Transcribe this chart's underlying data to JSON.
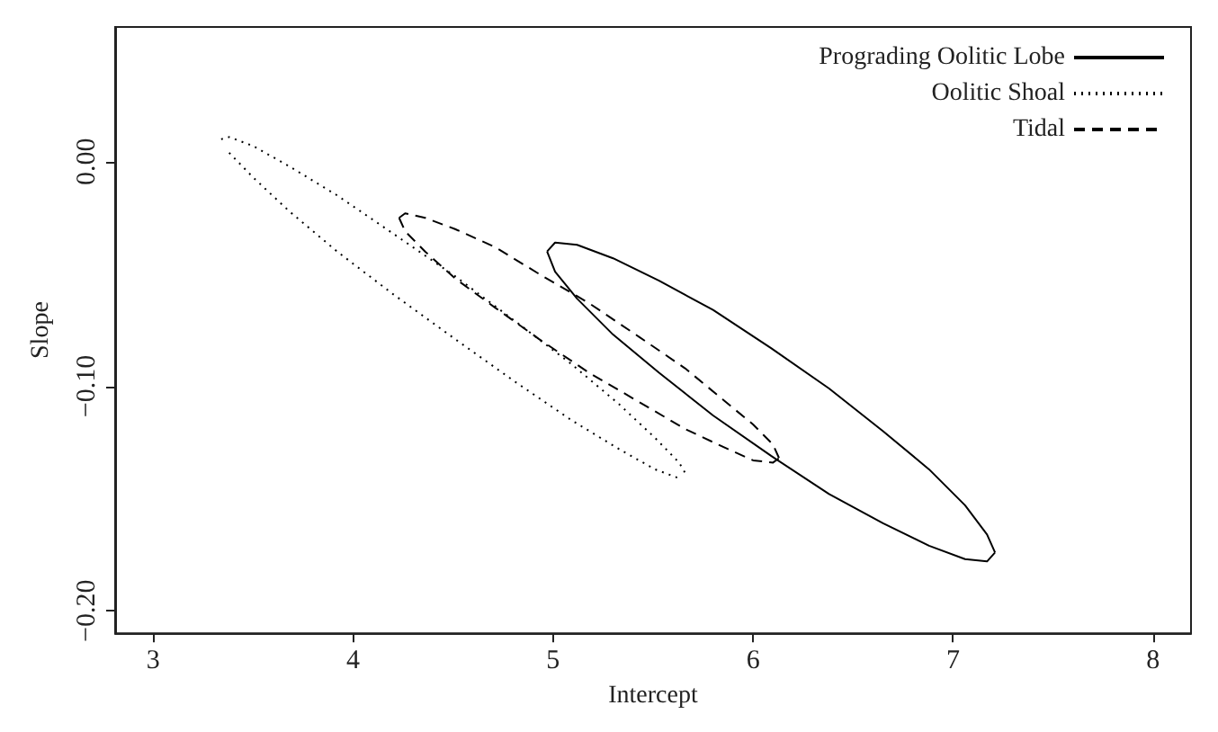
{
  "chart_data": {
    "type": "line",
    "xlabel": "Intercept",
    "ylabel": "Slope",
    "xlim": [
      2.81,
      8.19
    ],
    "ylim": [
      -0.21,
      0.06
    ],
    "xticks": [
      3,
      4,
      5,
      6,
      7,
      8
    ],
    "yticks": [
      {
        "value": 0,
        "label": "0.00"
      },
      {
        "value": -0.1,
        "label": "−0.10"
      },
      {
        "value": -0.2,
        "label": "−0.20"
      }
    ],
    "grid": false,
    "legend": "top right",
    "marker": "none",
    "series": [
      {
        "name": "Prograding Oolitic Lobe",
        "color": "#000000",
        "line_style": "solid",
        "x": [
          4.97,
          5.01,
          5.12,
          5.3,
          5.53,
          5.8,
          6.09,
          6.38,
          6.65,
          6.88,
          7.06,
          7.17,
          7.21
        ],
        "values": [
          -0.04,
          -0.036,
          -0.037,
          -0.043,
          -0.053,
          -0.066,
          -0.083,
          -0.101,
          -0.12,
          -0.137,
          -0.153,
          -0.166,
          -0.174
        ]
      },
      {
        "color": "#000000",
        "line_style": "solid",
        "x": [
          4.97,
          5.01,
          5.12,
          5.3,
          5.53,
          5.8,
          6.09,
          6.38,
          6.65,
          6.88,
          7.06,
          7.17,
          7.21
        ],
        "values": [
          -0.04,
          -0.049,
          -0.061,
          -0.077,
          -0.094,
          -0.113,
          -0.131,
          -0.148,
          -0.161,
          -0.171,
          -0.177,
          -0.178,
          -0.174
        ]
      },
      {
        "name": "Oolitic Shoal",
        "color": "#000000",
        "line_style": "dotted",
        "x": [
          3.34,
          3.38,
          3.5,
          3.68,
          3.92,
          4.2,
          4.51,
          4.81,
          5.09,
          5.33,
          5.51,
          5.63,
          5.67
        ],
        "values": [
          0.01,
          0.011,
          0.007,
          -0.002,
          -0.015,
          -0.032,
          -0.051,
          -0.071,
          -0.09,
          -0.108,
          -0.123,
          -0.134,
          -0.14
        ]
      },
      {
        "color": "#000000",
        "line_style": "dotted",
        "x": [
          3.38,
          3.5,
          3.68,
          3.92,
          4.2,
          4.51,
          4.81,
          5.09,
          5.33,
          5.51,
          5.63
        ],
        "values": [
          0.004,
          -0.007,
          -0.022,
          -0.04,
          -0.059,
          -0.079,
          -0.098,
          -0.115,
          -0.128,
          -0.137,
          -0.141
        ]
      },
      {
        "name": "Tidal",
        "color": "#000000",
        "line_style": "dashed",
        "x": [
          4.23,
          4.26,
          4.36,
          4.51,
          4.71,
          4.93,
          5.18,
          5.43,
          5.66,
          5.85,
          6.0,
          6.1,
          6.13
        ],
        "values": [
          -0.025,
          -0.023,
          -0.025,
          -0.03,
          -0.038,
          -0.05,
          -0.063,
          -0.078,
          -0.092,
          -0.106,
          -0.117,
          -0.126,
          -0.132
        ]
      },
      {
        "color": "#000000",
        "line_style": "dashed",
        "x": [
          4.23,
          4.26,
          4.36,
          4.51,
          4.71,
          4.93,
          5.18,
          5.43,
          5.66,
          5.85,
          6.0,
          6.1,
          6.13
        ],
        "values": [
          -0.025,
          -0.031,
          -0.04,
          -0.052,
          -0.065,
          -0.079,
          -0.094,
          -0.107,
          -0.119,
          -0.127,
          -0.133,
          -0.134,
          -0.132
        ]
      }
    ]
  }
}
